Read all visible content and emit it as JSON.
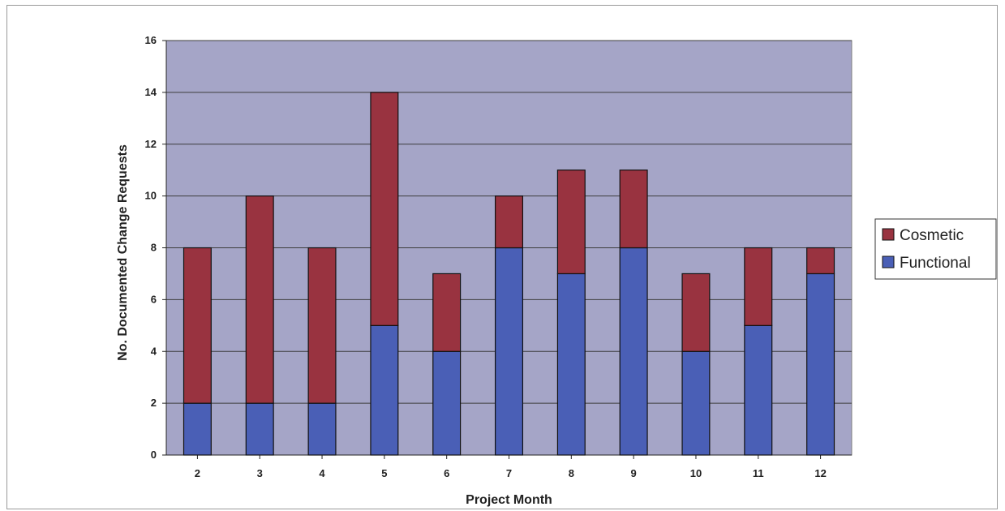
{
  "chart_data": {
    "type": "bar",
    "stacked": true,
    "categories": [
      "2",
      "3",
      "4",
      "5",
      "6",
      "7",
      "8",
      "9",
      "10",
      "11",
      "12"
    ],
    "series": [
      {
        "name": "Functional",
        "values": [
          2,
          2,
          2,
          5,
          4,
          8,
          7,
          8,
          4,
          5,
          7
        ],
        "color": "#4a5fb6"
      },
      {
        "name": "Cosmetic",
        "values": [
          6,
          8,
          6,
          9,
          3,
          2,
          4,
          3,
          3,
          3,
          1
        ],
        "color": "#993340"
      }
    ],
    "title": "",
    "xlabel": "Project Month",
    "ylabel": "No. Documented Change Requests",
    "ylim": [
      0,
      16
    ],
    "yticks": [
      "0",
      "2",
      "4",
      "6",
      "8",
      "10",
      "12",
      "14",
      "16"
    ],
    "grid": true,
    "legend": {
      "position": "right",
      "entries": [
        "Cosmetic",
        "Functional"
      ]
    },
    "plot_background": "#a5a5c7"
  }
}
